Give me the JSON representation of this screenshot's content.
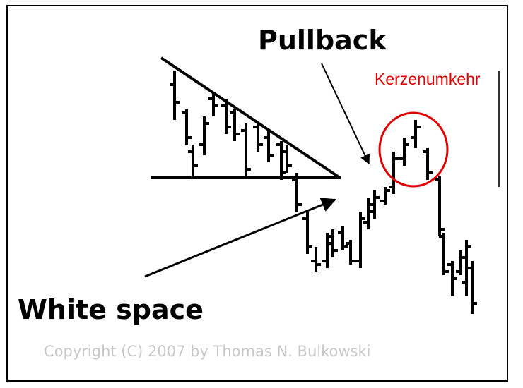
{
  "labels": {
    "pullback": "Pullback",
    "reversal": "Kerzenumkehr",
    "white_space": "White space"
  },
  "footer": {
    "copyright": "Copyright (C) 2007 by Thomas N. Bulkowski"
  }
}
